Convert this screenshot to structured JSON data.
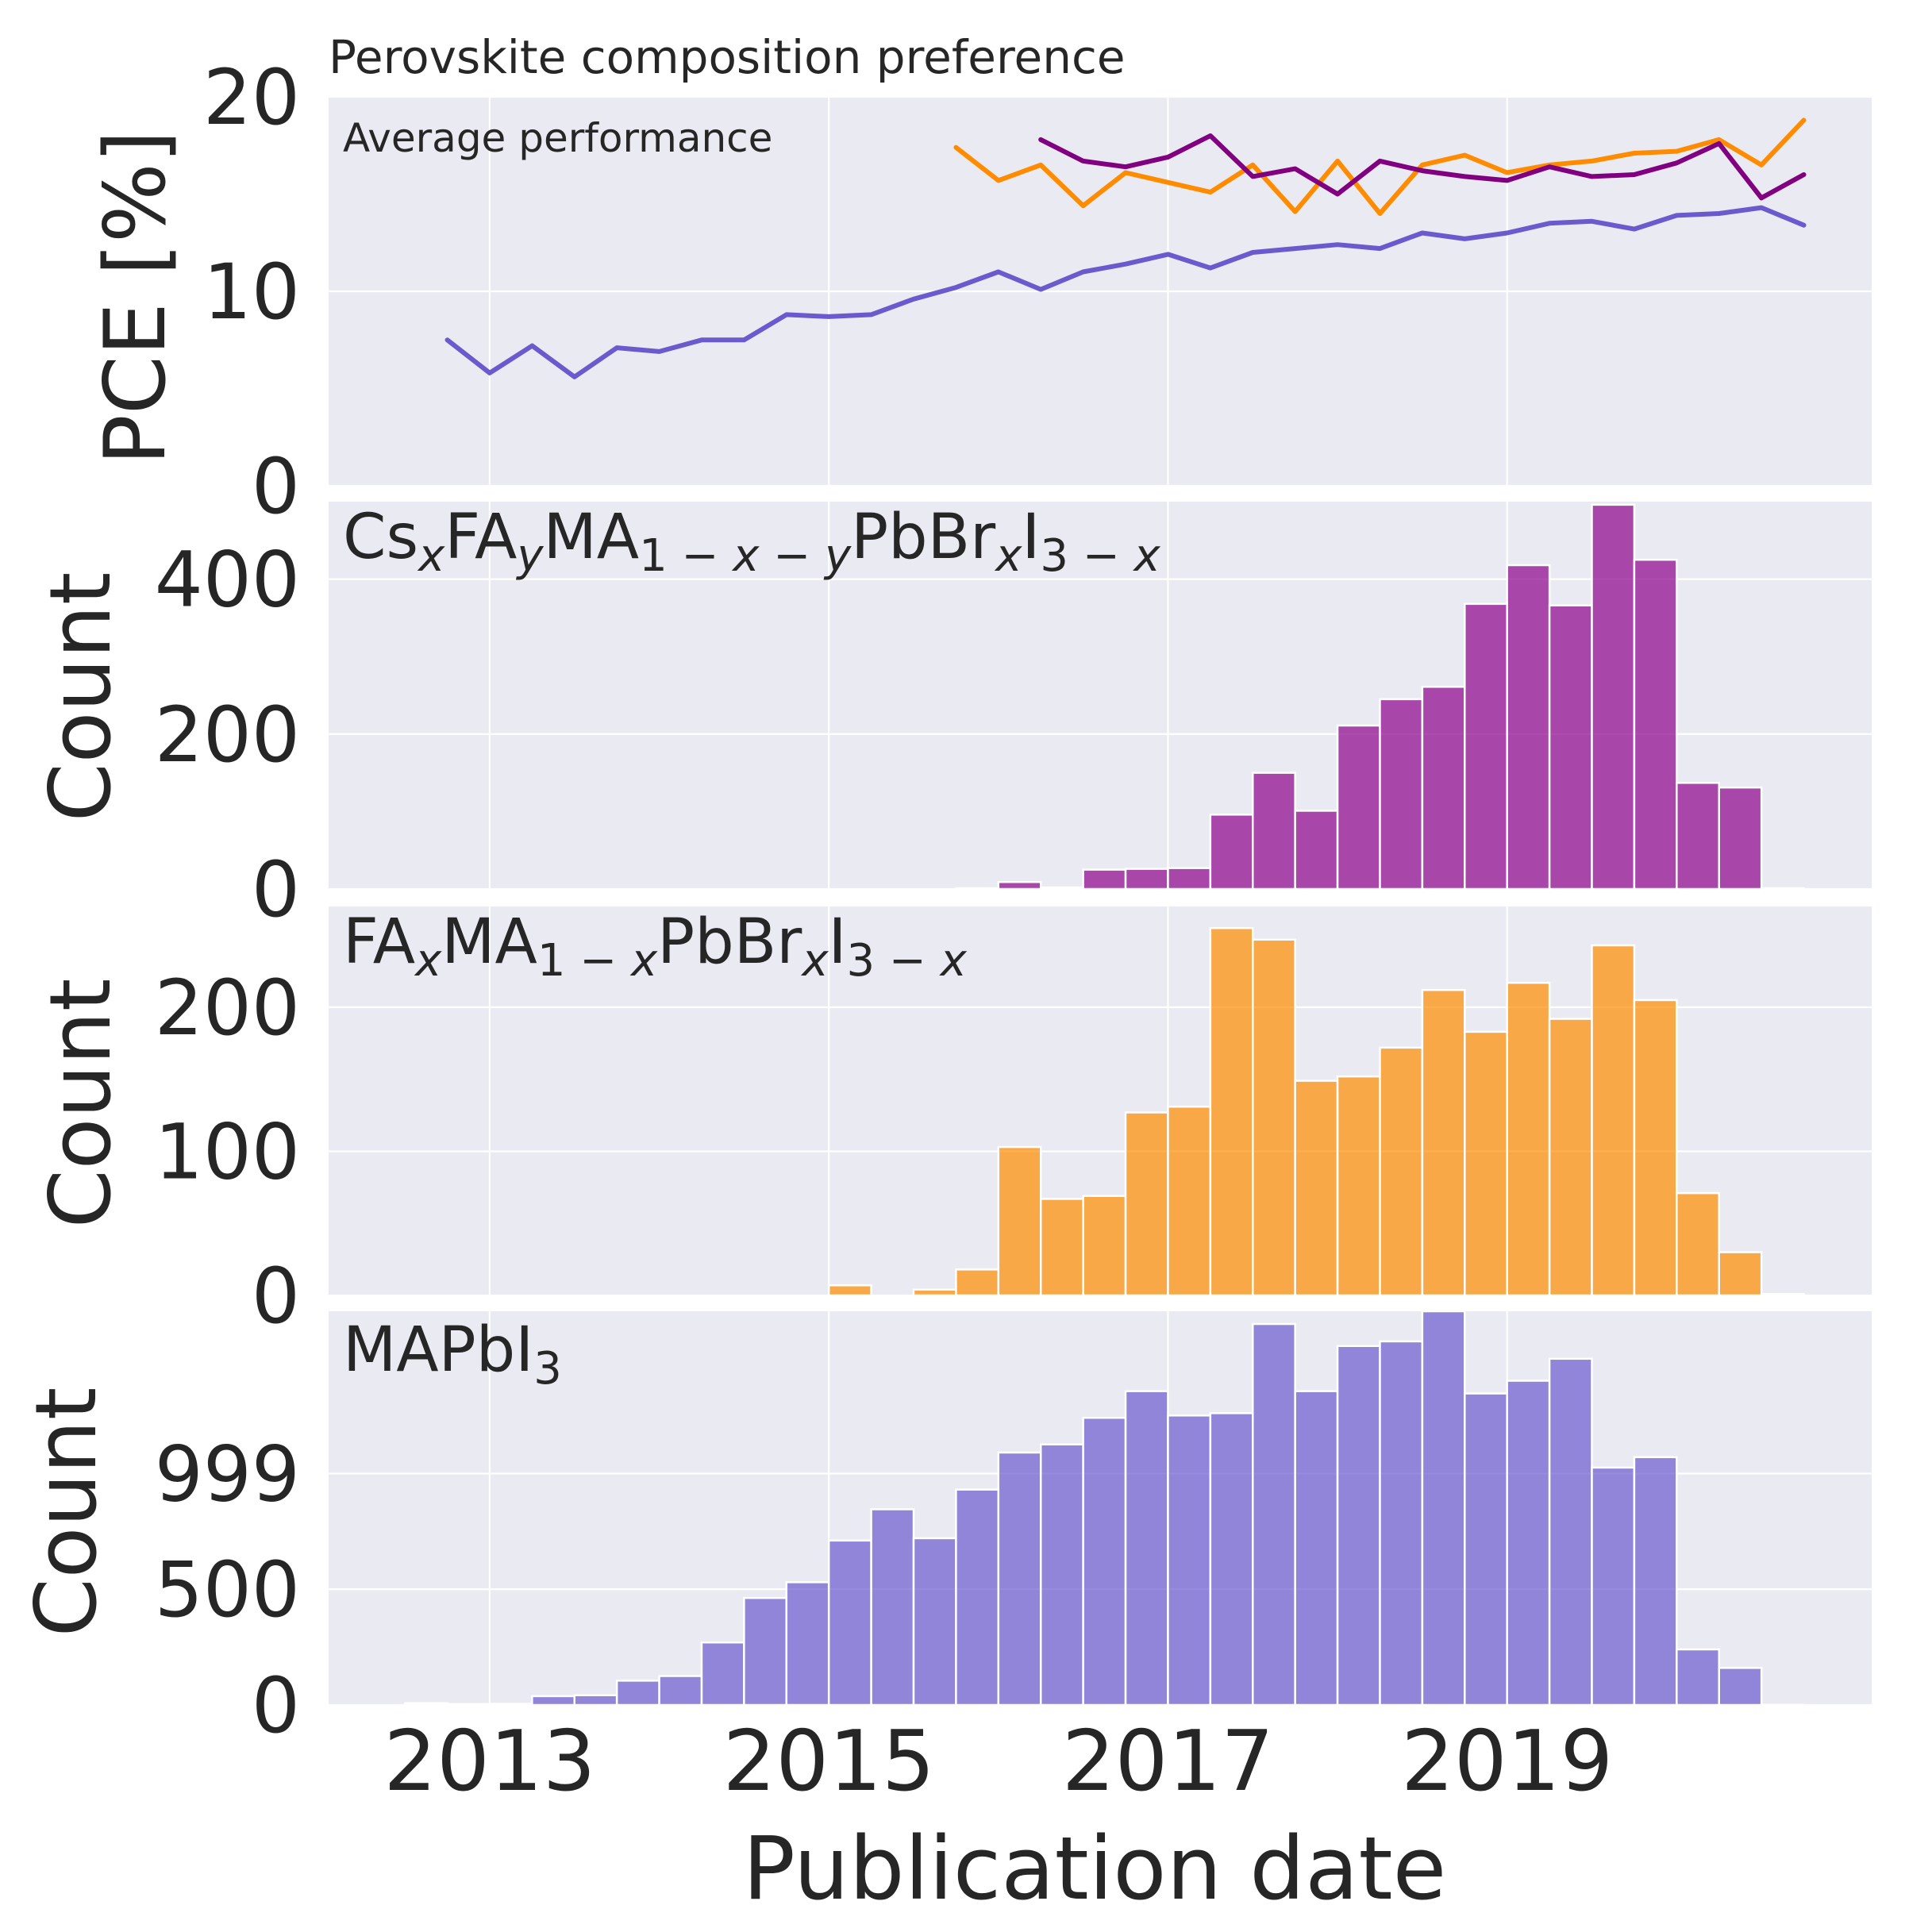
{
  "chart_data": [
    {
      "type": "line",
      "title": "Perovskite composition preference",
      "subtitle": "Average performance",
      "ylabel": "PCE [%]",
      "ylim": [
        0,
        20
      ],
      "yticks": [
        "0",
        "10",
        "20"
      ],
      "xlim": [
        2012.05,
        2021.15
      ],
      "grid": true,
      "series": [
        {
          "color": "#6a5acd",
          "x": [
            2012.75,
            2013.0,
            2013.25,
            2013.5,
            2013.75,
            2014.0,
            2014.25,
            2014.5,
            2014.75,
            2015.0,
            2015.25,
            2015.5,
            2015.75,
            2016.0,
            2016.25,
            2016.5,
            2016.75,
            2017.0,
            2017.25,
            2017.5,
            2017.75,
            2018.0,
            2018.25,
            2018.5,
            2018.75,
            2019.0,
            2019.25,
            2019.5,
            2019.75,
            2020.0,
            2020.25,
            2020.5,
            2020.75
          ],
          "values": [
            7.5,
            5.8,
            7.2,
            5.6,
            7.1,
            6.9,
            7.5,
            7.5,
            8.8,
            8.7,
            8.8,
            9.6,
            10.2,
            11.0,
            10.1,
            11.0,
            11.4,
            11.9,
            11.2,
            12.0,
            12.2,
            12.4,
            12.2,
            13.0,
            12.7,
            13.0,
            13.5,
            13.6,
            13.2,
            13.9,
            14.0,
            14.3,
            13.4
          ]
        },
        {
          "color": "#ff8c00",
          "x": [
            2015.75,
            2016.0,
            2016.25,
            2016.5,
            2016.75,
            2017.0,
            2017.25,
            2017.5,
            2017.75,
            2018.0,
            2018.25,
            2018.5,
            2018.75,
            2019.0,
            2019.25,
            2019.5,
            2019.75,
            2020.0,
            2020.25,
            2020.5,
            2020.75
          ],
          "values": [
            17.4,
            15.7,
            16.5,
            14.4,
            16.1,
            15.6,
            15.1,
            16.5,
            14.1,
            16.7,
            14.0,
            16.5,
            17.0,
            16.1,
            16.5,
            16.7,
            17.1,
            17.2,
            17.8,
            16.5,
            18.8
          ]
        },
        {
          "color": "#800080",
          "x": [
            2016.25,
            2016.5,
            2016.75,
            2017.0,
            2017.25,
            2017.5,
            2017.75,
            2018.0,
            2018.25,
            2018.5,
            2018.75,
            2019.0,
            2019.25,
            2019.5,
            2019.75,
            2020.0,
            2020.25,
            2020.5,
            2020.75
          ],
          "values": [
            17.8,
            16.7,
            16.4,
            16.9,
            18.0,
            15.9,
            16.3,
            15.0,
            16.7,
            16.2,
            15.9,
            15.7,
            16.4,
            15.9,
            16.0,
            16.6,
            17.6,
            14.8,
            16.0
          ]
        }
      ]
    },
    {
      "type": "bar",
      "title": "Cs_xFA_yMA_{1-x-y}PbBr_xI_{3-x}",
      "ylabel": "Count",
      "ylim": [
        0,
        500
      ],
      "yticks": [
        0,
        200,
        400
      ],
      "color": "#8b008b",
      "bin_width": 0.25,
      "bin_starts": [
        2015.75,
        2016.0,
        2016.25,
        2016.5,
        2016.75,
        2017.0,
        2017.25,
        2017.5,
        2017.75,
        2018.0,
        2018.25,
        2018.5,
        2018.75,
        2019.0,
        2019.25,
        2019.5,
        2019.75,
        2020.0,
        2020.25,
        2020.5
      ],
      "values": [
        1,
        9,
        2,
        25,
        26,
        27,
        96,
        150,
        101,
        211,
        245,
        261,
        368,
        418,
        366,
        496,
        425,
        137,
        131,
        1
      ]
    },
    {
      "type": "bar",
      "title": "FA_xMA_{1-x}PbBr_xI_{3-x}",
      "ylabel": "Count",
      "ylim": [
        0,
        270
      ],
      "yticks": [
        0,
        100,
        200
      ],
      "color": "#ff8c00",
      "bin_width": 0.25,
      "bin_starts": [
        2015.0,
        2015.25,
        2015.5,
        2015.75,
        2016.0,
        2016.25,
        2016.5,
        2016.75,
        2017.0,
        2017.25,
        2017.5,
        2017.75,
        2018.0,
        2018.25,
        2018.5,
        2018.75,
        2019.0,
        2019.25,
        2019.5,
        2019.75,
        2020.0,
        2020.25,
        2020.5
      ],
      "values": [
        7,
        0,
        4,
        18,
        103,
        67,
        69,
        127,
        131,
        255,
        247,
        149,
        152,
        172,
        212,
        183,
        217,
        192,
        243,
        205,
        71,
        30,
        1
      ]
    },
    {
      "type": "bar",
      "title": "MAPbI_3",
      "ylabel": "Count",
      "xlabel": "Publication date",
      "ylim": [
        0,
        1700
      ],
      "yticks": [
        "0",
        "500",
        "999"
      ],
      "xticks": [
        "2013",
        "2015",
        "2017",
        "2019"
      ],
      "color": "#6a5acd",
      "bin_width": 0.25,
      "bin_starts": [
        2012.5,
        2012.75,
        2013.0,
        2013.25,
        2013.5,
        2013.75,
        2014.0,
        2014.25,
        2014.5,
        2014.75,
        2015.0,
        2015.25,
        2015.5,
        2015.75,
        2016.0,
        2016.25,
        2016.5,
        2016.75,
        2017.0,
        2017.25,
        2017.5,
        2017.75,
        2018.0,
        2018.25,
        2018.5,
        2018.75,
        2019.0,
        2019.25,
        2019.5,
        2019.75,
        2020.0,
        2020.25,
        2020.5
      ],
      "values": [
        8,
        4,
        5,
        38,
        42,
        105,
        125,
        270,
        462,
        530,
        710,
        845,
        720,
        930,
        1090,
        1125,
        1240,
        1355,
        1250,
        1260,
        1645,
        1355,
        1550,
        1570,
        1725,
        1345,
        1400,
        1495,
        1025,
        1070,
        240,
        160,
        1
      ]
    }
  ]
}
